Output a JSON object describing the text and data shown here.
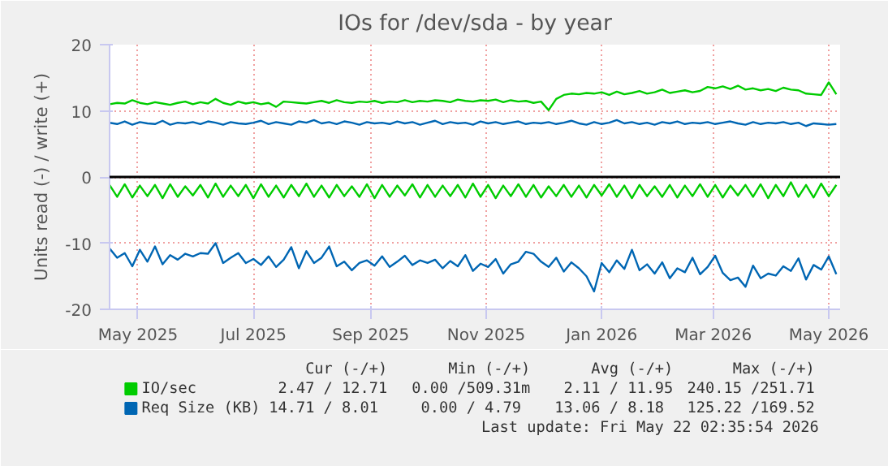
{
  "chart_data": {
    "type": "line",
    "title": "IOs for /dev/sda - by year",
    "ylabel": "Units read (-) / write (+)",
    "x": [
      "2025-04-16",
      "2025-04-20",
      "2025-04-24",
      "2025-04-28",
      "2025-05-02",
      "2025-05-06",
      "2025-05-10",
      "2025-05-14",
      "2025-05-18",
      "2025-05-22",
      "2025-05-26",
      "2025-05-30",
      "2025-06-03",
      "2025-06-07",
      "2025-06-11",
      "2025-06-15",
      "2025-06-19",
      "2025-06-23",
      "2025-06-27",
      "2025-07-01",
      "2025-07-05",
      "2025-07-09",
      "2025-07-13",
      "2025-07-17",
      "2025-07-21",
      "2025-07-25",
      "2025-07-29",
      "2025-08-02",
      "2025-08-06",
      "2025-08-10",
      "2025-08-14",
      "2025-08-18",
      "2025-08-22",
      "2025-08-26",
      "2025-08-30",
      "2025-09-03",
      "2025-09-07",
      "2025-09-11",
      "2025-09-15",
      "2025-09-19",
      "2025-09-23",
      "2025-09-27",
      "2025-10-01",
      "2025-10-05",
      "2025-10-09",
      "2025-10-13",
      "2025-10-17",
      "2025-10-21",
      "2025-10-25",
      "2025-10-29",
      "2025-11-02",
      "2025-11-06",
      "2025-11-10",
      "2025-11-14",
      "2025-11-18",
      "2025-11-22",
      "2025-11-26",
      "2025-11-30",
      "2025-12-04",
      "2025-12-08",
      "2025-12-12",
      "2025-12-16",
      "2025-12-20",
      "2025-12-24",
      "2025-12-28",
      "2026-01-01",
      "2026-01-05",
      "2026-01-09",
      "2026-01-13",
      "2026-01-17",
      "2026-01-21",
      "2026-01-25",
      "2026-01-29",
      "2026-02-02",
      "2026-02-06",
      "2026-02-10",
      "2026-02-14",
      "2026-02-18",
      "2026-02-22",
      "2026-02-26",
      "2026-03-02",
      "2026-03-06",
      "2026-03-10",
      "2026-03-14",
      "2026-03-18",
      "2026-03-22",
      "2026-03-26",
      "2026-03-30",
      "2026-04-03",
      "2026-04-07",
      "2026-04-11",
      "2026-04-15",
      "2026-04-19",
      "2026-04-23",
      "2026-04-27",
      "2026-05-01",
      "2026-05-05"
    ],
    "series": [
      {
        "name": "IO/sec",
        "color": "#00cc00",
        "values": [
          11.0,
          11.2,
          11.1,
          11.6,
          11.2,
          11.0,
          11.3,
          11.1,
          10.9,
          11.2,
          11.4,
          11.0,
          11.3,
          11.1,
          11.8,
          11.2,
          10.9,
          11.4,
          11.1,
          11.3,
          11.0,
          11.2,
          10.6,
          11.4,
          11.3,
          11.2,
          11.1,
          11.3,
          11.5,
          11.2,
          11.6,
          11.3,
          11.2,
          11.4,
          11.3,
          11.5,
          11.2,
          11.4,
          11.3,
          11.6,
          11.3,
          11.5,
          11.4,
          11.6,
          11.5,
          11.3,
          11.7,
          11.5,
          11.4,
          11.6,
          11.5,
          11.7,
          11.3,
          11.6,
          11.4,
          11.5,
          11.2,
          11.4,
          10.1,
          11.8,
          12.4,
          12.6,
          12.5,
          12.7,
          12.6,
          12.8,
          12.4,
          12.9,
          12.5,
          12.7,
          13.0,
          12.6,
          12.8,
          13.2,
          12.7,
          12.9,
          13.1,
          12.8,
          13.0,
          13.6,
          13.4,
          13.7,
          13.3,
          13.8,
          13.2,
          13.4,
          13.1,
          13.3,
          13.0,
          13.5,
          13.2,
          13.1,
          12.6,
          12.5,
          12.4,
          14.3,
          12.5
        ]
      },
      {
        "color": "#00cc00",
        "values": [
          -1.2,
          -3.0,
          -1.1,
          -3.1,
          -1.3,
          -2.9,
          -1.2,
          -3.2,
          -1.1,
          -3.0,
          -1.4,
          -2.8,
          -1.2,
          -3.1,
          -1.0,
          -3.0,
          -1.3,
          -2.9,
          -1.2,
          -3.2,
          -1.1,
          -3.0,
          -1.3,
          -3.1,
          -1.2,
          -2.9,
          -1.0,
          -3.0,
          -1.3,
          -3.1,
          -1.2,
          -2.9,
          -1.4,
          -3.0,
          -1.1,
          -3.2,
          -1.2,
          -3.0,
          -1.3,
          -2.8,
          -1.1,
          -3.1,
          -1.2,
          -3.0,
          -1.3,
          -2.9,
          -1.2,
          -3.1,
          -1.0,
          -3.0,
          -1.2,
          -3.2,
          -1.3,
          -2.9,
          -1.1,
          -3.0,
          -1.2,
          -3.1,
          -1.4,
          -2.9,
          -1.2,
          -3.0,
          -1.3,
          -3.1,
          -1.2,
          -2.8,
          -1.1,
          -3.0,
          -1.3,
          -3.2,
          -1.2,
          -2.9,
          -1.4,
          -3.0,
          -1.2,
          -3.1,
          -1.3,
          -2.9,
          -1.1,
          -3.0,
          -1.2,
          -3.1,
          -1.3,
          -2.8,
          -1.2,
          -3.0,
          -1.1,
          -3.2,
          -1.2,
          -2.9,
          -0.8,
          -3.0,
          -1.2,
          -3.1,
          -1.0,
          -2.9,
          -1.2
        ]
      },
      {
        "name": "Req Size (KB)",
        "color": "#0066b3",
        "values": [
          8.2,
          8.0,
          8.4,
          7.9,
          8.3,
          8.1,
          8.0,
          8.5,
          7.9,
          8.2,
          8.1,
          8.3,
          8.0,
          8.4,
          8.2,
          7.9,
          8.3,
          8.1,
          8.0,
          8.2,
          8.5,
          8.0,
          8.3,
          8.1,
          7.9,
          8.4,
          8.2,
          8.6,
          8.1,
          8.3,
          8.0,
          8.4,
          8.2,
          7.9,
          8.3,
          8.1,
          8.2,
          8.0,
          8.4,
          8.1,
          8.3,
          7.9,
          8.2,
          8.5,
          8.0,
          8.3,
          8.1,
          8.2,
          7.9,
          8.4,
          8.1,
          8.3,
          8.0,
          8.2,
          8.4,
          8.0,
          8.2,
          8.1,
          8.3,
          8.0,
          8.2,
          8.5,
          8.1,
          7.9,
          8.3,
          8.0,
          8.2,
          8.6,
          8.1,
          8.3,
          8.0,
          8.2,
          7.9,
          8.3,
          8.1,
          8.4,
          8.0,
          8.2,
          8.1,
          8.3,
          8.0,
          8.2,
          8.4,
          8.1,
          7.9,
          8.3,
          8.0,
          8.2,
          8.1,
          8.3,
          8.0,
          8.2,
          7.7,
          8.1,
          8.0,
          7.9,
          8.0
        ]
      },
      {
        "color": "#0066b3",
        "values": [
          -10.8,
          -12.2,
          -11.5,
          -13.5,
          -11.0,
          -12.8,
          -10.5,
          -13.2,
          -11.8,
          -12.5,
          -11.6,
          -12.0,
          -11.5,
          -11.6,
          -10.0,
          -13.0,
          -12.2,
          -11.5,
          -13.0,
          -12.4,
          -13.3,
          -12.0,
          -13.6,
          -12.5,
          -10.6,
          -13.8,
          -11.2,
          -13.0,
          -12.2,
          -10.5,
          -13.5,
          -12.8,
          -14.1,
          -13.0,
          -12.6,
          -13.4,
          -12.0,
          -13.6,
          -12.8,
          -11.9,
          -13.3,
          -12.6,
          -13.0,
          -12.5,
          -13.8,
          -12.7,
          -13.5,
          -11.8,
          -14.2,
          -13.1,
          -13.6,
          -12.4,
          -14.6,
          -13.2,
          -12.8,
          -11.3,
          -11.6,
          -12.8,
          -13.6,
          -12.2,
          -14.3,
          -12.9,
          -13.8,
          -15.0,
          -17.3,
          -13.0,
          -14.4,
          -12.6,
          -13.9,
          -11.0,
          -14.1,
          -13.2,
          -14.6,
          -12.9,
          -15.3,
          -13.8,
          -14.4,
          -12.2,
          -14.7,
          -13.6,
          -11.9,
          -14.5,
          -15.6,
          -15.2,
          -16.6,
          -13.4,
          -15.3,
          -14.6,
          -14.9,
          -13.5,
          -14.2,
          -12.3,
          -15.5,
          -13.3,
          -14.0,
          -12.0,
          -14.7
        ]
      }
    ],
    "xlim": [
      "2025-04-16",
      "2026-05-07"
    ],
    "xticks": [
      {
        "value": "2025-05-01",
        "label": "May 2025"
      },
      {
        "value": "2025-07-01",
        "label": "Jul 2025"
      },
      {
        "value": "2025-09-01",
        "label": "Sep 2025"
      },
      {
        "value": "2025-11-01",
        "label": "Nov 2025"
      },
      {
        "value": "2026-01-01",
        "label": "Jan 2026"
      },
      {
        "value": "2026-03-01",
        "label": "Mar 2026"
      },
      {
        "value": "2026-05-01",
        "label": "May 2026"
      }
    ],
    "ylim": [
      -20,
      20
    ],
    "yticks": [
      -20,
      -10,
      0,
      10,
      20
    ],
    "ref_lines": [
      {
        "axis": "y",
        "value": 0,
        "color": "#000000"
      }
    ],
    "grid": true,
    "legend": "bottom left",
    "annotations": [
      "Cur (-/+)",
      "Min (-/+)",
      "Avg (-/+)",
      "Max (-/+)",
      "2.47 / 12.71",
      "0.00 /509.31m",
      "2.11 / 11.95",
      "240.15 /251.71",
      "14.71 /  8.01",
      "0.00 /  4.79",
      "13.06 /  8.18",
      "125.22 /169.52",
      "Last update: Fri May 22 02:35:54 2026"
    ]
  }
}
